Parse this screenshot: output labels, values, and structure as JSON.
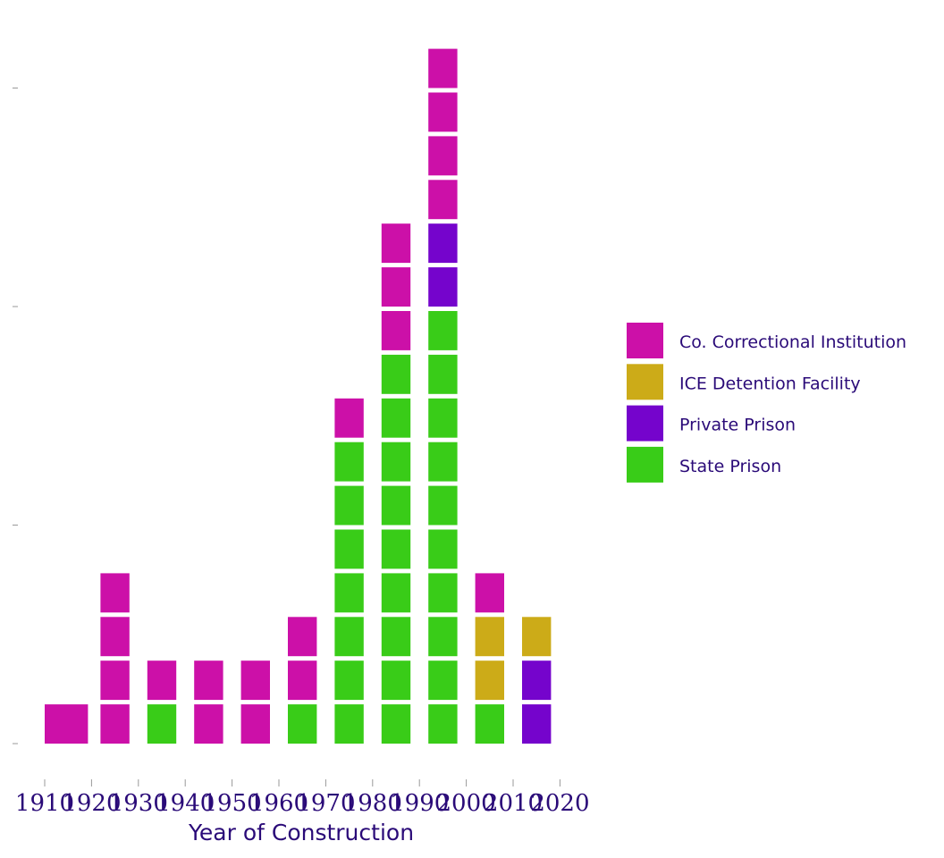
{
  "chart_data": {
    "type": "bar",
    "subtype": "stacked-unit-dot",
    "title": "",
    "xlabel": "Year of Construction",
    "ylabel": "",
    "x_ticks": [
      "1910",
      "1920",
      "1930",
      "1940",
      "1950",
      "1960",
      "1970",
      "1980",
      "1990",
      "2000",
      "2010",
      "2020"
    ],
    "bin_starts": [
      1910,
      1920,
      1930,
      1940,
      1950,
      1960,
      1970,
      1980,
      1990,
      2000,
      2010
    ],
    "bin_width": 10,
    "ylim": [
      0,
      15
    ],
    "grid": false,
    "legend": {
      "placement": "right"
    },
    "series": [
      {
        "name": "Co. Correctional Institution",
        "color": "#cc10a8"
      },
      {
        "name": "ICE Detention Facility",
        "color": "#ccab18"
      },
      {
        "name": "Private Prison",
        "color": "#7504cc"
      },
      {
        "name": "State Prison",
        "color": "#39cc18"
      }
    ],
    "stacks": [
      {
        "bin": 1910,
        "units": [
          "Co. Correctional Institution"
        ]
      },
      {
        "bin": 1920,
        "units": [
          "Co. Correctional Institution",
          "Co. Correctional Institution",
          "Co. Correctional Institution",
          "Co. Correctional Institution"
        ]
      },
      {
        "bin": 1930,
        "units": [
          "State Prison",
          "Co. Correctional Institution"
        ]
      },
      {
        "bin": 1940,
        "units": [
          "Co. Correctional Institution",
          "Co. Correctional Institution"
        ]
      },
      {
        "bin": 1950,
        "units": [
          "Co. Correctional Institution",
          "Co. Correctional Institution"
        ]
      },
      {
        "bin": 1960,
        "units": [
          "State Prison",
          "Co. Correctional Institution",
          "Co. Correctional Institution"
        ]
      },
      {
        "bin": 1970,
        "units": [
          "State Prison",
          "State Prison",
          "State Prison",
          "State Prison",
          "State Prison",
          "State Prison",
          "State Prison",
          "Co. Correctional Institution"
        ]
      },
      {
        "bin": 1980,
        "units": [
          "State Prison",
          "State Prison",
          "State Prison",
          "State Prison",
          "State Prison",
          "State Prison",
          "State Prison",
          "State Prison",
          "State Prison",
          "Co. Correctional Institution",
          "Co. Correctional Institution",
          "Co. Correctional Institution"
        ]
      },
      {
        "bin": 1990,
        "units": [
          "State Prison",
          "State Prison",
          "State Prison",
          "State Prison",
          "State Prison",
          "State Prison",
          "State Prison",
          "State Prison",
          "State Prison",
          "State Prison",
          "Private Prison",
          "Private Prison",
          "Co. Correctional Institution",
          "Co. Correctional Institution",
          "Co. Correctional Institution",
          "Co. Correctional Institution"
        ]
      },
      {
        "bin": 2000,
        "units": [
          "State Prison",
          "ICE Detention Facility",
          "ICE Detention Facility",
          "Co. Correctional Institution"
        ]
      },
      {
        "bin": 2010,
        "units": [
          "Private Prison",
          "Private Prison",
          "ICE Detention Facility"
        ]
      }
    ]
  }
}
